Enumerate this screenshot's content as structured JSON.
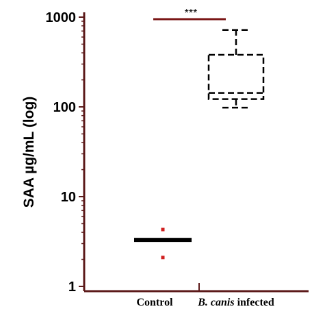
{
  "chart_data": {
    "type": "box",
    "ylabel": "SAA µg/mL (log)",
    "yscale": "log",
    "ylim": [
      1,
      1000
    ],
    "yticks": [
      {
        "value": 1,
        "label": "1"
      },
      {
        "value": 10,
        "label": "10"
      },
      {
        "value": 100,
        "label": "100"
      },
      {
        "value": 1000,
        "label": "1000"
      }
    ],
    "categories": [
      {
        "prefix": "",
        "italic": "",
        "suffix": "Control"
      },
      {
        "prefix": "",
        "italic": "B. canis",
        "suffix": " infected"
      }
    ],
    "series": [
      {
        "category_index": 0,
        "style": "median-with-points",
        "median": 3.3,
        "points": [
          4.3,
          2.1
        ]
      },
      {
        "category_index": 1,
        "style": "dashed-box",
        "whisker_low": 98,
        "q1": 122,
        "median": 143,
        "q3": 380,
        "whisker_high": 720
      }
    ],
    "significance": {
      "label": "***",
      "from": 0,
      "to": 1,
      "y_value": 970
    }
  },
  "colors": {
    "axis": "#5c1a1a",
    "sig_bar": "#7a1616",
    "points": "#d02020",
    "box": "#000000"
  }
}
